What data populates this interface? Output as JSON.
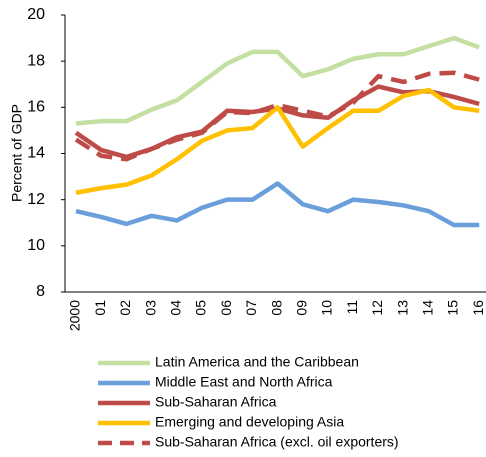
{
  "chart_data": {
    "type": "line",
    "y_label": "Percent of GDP",
    "categories": [
      "2000",
      "01",
      "02",
      "03",
      "04",
      "05",
      "06",
      "07",
      "08",
      "09",
      "10",
      "11",
      "12",
      "13",
      "14",
      "15",
      "16"
    ],
    "ylim": [
      8,
      20
    ],
    "yticks": [
      8,
      10,
      12,
      14,
      16,
      18,
      20
    ],
    "series": [
      {
        "name": "Latin America and the Caribbean",
        "color": "#c4dfa2",
        "dashed": false,
        "values": [
          15.3,
          15.4,
          15.4,
          15.9,
          16.3,
          17.1,
          17.9,
          18.4,
          18.4,
          17.35,
          17.65,
          18.1,
          18.3,
          18.3,
          18.65,
          19.0,
          18.6
        ]
      },
      {
        "name": "Middle East and North Africa",
        "color": "#6a9fdc",
        "dashed": false,
        "values": [
          11.5,
          11.25,
          10.95,
          11.3,
          11.1,
          11.65,
          12.0,
          12.0,
          12.7,
          11.8,
          11.5,
          12.0,
          11.9,
          11.75,
          11.5,
          10.9,
          10.9
        ]
      },
      {
        "name": "Sub-Saharan Africa",
        "color": "#be4b48",
        "dashed": false,
        "values": [
          14.9,
          14.15,
          13.85,
          14.2,
          14.7,
          14.95,
          15.85,
          15.8,
          15.95,
          15.65,
          15.55,
          16.3,
          16.9,
          16.65,
          16.7,
          16.45,
          16.15
        ]
      },
      {
        "name": "Emerging and developing Asia",
        "color": "#ffc000",
        "dashed": false,
        "values": [
          12.3,
          12.5,
          12.65,
          13.05,
          13.75,
          14.55,
          15.0,
          15.1,
          16.0,
          14.3,
          15.1,
          15.85,
          15.85,
          16.5,
          16.75,
          16.0,
          15.85
        ]
      },
      {
        "name": "Sub-Saharan Africa (excl. oil exporters)",
        "color": "#be4b48",
        "dashed": true,
        "values": [
          14.6,
          13.9,
          13.75,
          14.2,
          14.6,
          14.9,
          15.8,
          15.75,
          16.1,
          15.85,
          15.6,
          16.2,
          17.35,
          17.1,
          17.45,
          17.5,
          17.2
        ]
      }
    ]
  }
}
